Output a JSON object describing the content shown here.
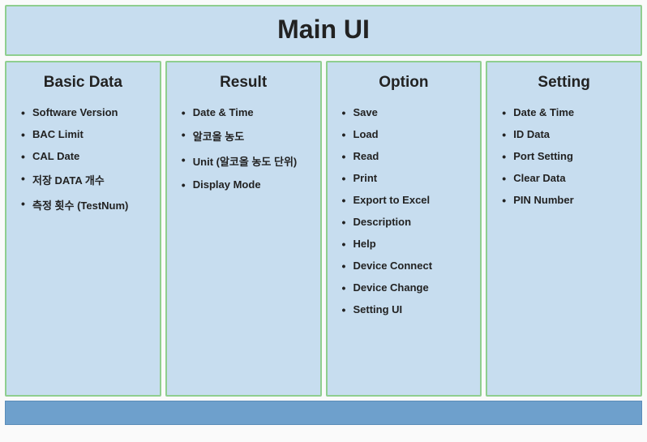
{
  "type": "infographic",
  "background_color": "#c7ddef",
  "border_color": "#8fce8f",
  "footer_bar_color": "#6ea0cc",
  "title_fontsize": 32,
  "header_fontsize": 19,
  "item_fontsize": 13,
  "title": "Main UI",
  "columns": [
    {
      "header": "Basic Data",
      "items": [
        "Software Version",
        "BAC Limit",
        "CAL Date",
        "저장 DATA 개수",
        "측정 횟수 (TestNum)"
      ]
    },
    {
      "header": "Result",
      "items": [
        "Date & Time",
        "알코올 농도",
        "Unit (알코올 농도 단위)",
        "Display Mode"
      ]
    },
    {
      "header": "Option",
      "items": [
        "Save",
        "Load",
        "Read",
        "Print",
        "Export to Excel",
        "Description",
        "Help",
        "Device Connect",
        "Device Change",
        "Setting UI"
      ]
    },
    {
      "header": "Setting",
      "items": [
        "Date & Time",
        "ID Data",
        "Port Setting",
        "Clear Data",
        "PIN Number"
      ]
    }
  ]
}
